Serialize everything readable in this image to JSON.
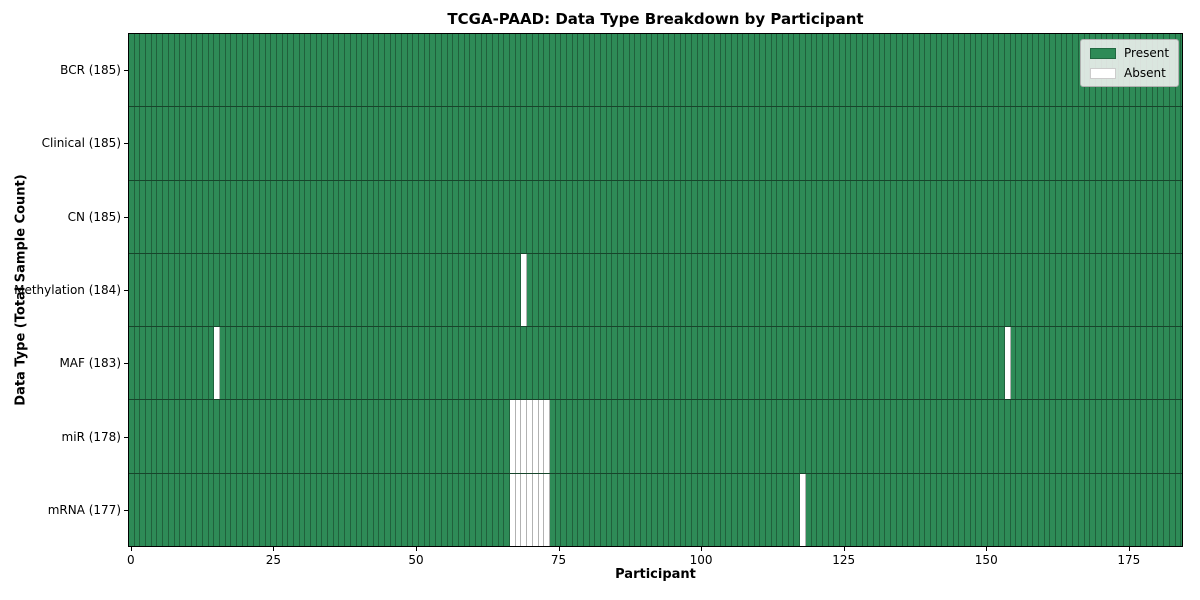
{
  "title": "TCGA-PAAD: Data Type Breakdown by Participant",
  "chart_data": {
    "type": "heatmap",
    "title": "TCGA-PAAD: Data Type Breakdown by Participant",
    "xlabel": "Participant",
    "ylabel": "Data Type (Total Sample Count)",
    "x_ticks": [
      0,
      25,
      50,
      75,
      100,
      125,
      150,
      175
    ],
    "xlim": [
      -0.5,
      184.5
    ],
    "n_participants": 185,
    "grid": false,
    "legend": {
      "position": "upper right",
      "entries": [
        {
          "label": "Present",
          "color": "#2e8b57"
        },
        {
          "label": "Absent",
          "color": "#ffffff"
        }
      ]
    },
    "colors": {
      "present": "#2e8b57",
      "absent": "#ffffff"
    },
    "rows": [
      {
        "data_type": "BCR",
        "total_samples": 185,
        "label": "BCR (185)",
        "absent_participants": []
      },
      {
        "data_type": "Clinical",
        "total_samples": 185,
        "label": "Clinical (185)",
        "absent_participants": []
      },
      {
        "data_type": "CN",
        "total_samples": 185,
        "label": "CN (185)",
        "absent_participants": []
      },
      {
        "data_type": "Methylation",
        "total_samples": 184,
        "label": "Methylation (184)",
        "absent_participants": [
          69
        ]
      },
      {
        "data_type": "MAF",
        "total_samples": 183,
        "label": "MAF (183)",
        "absent_participants": [
          15,
          154
        ]
      },
      {
        "data_type": "miR",
        "total_samples": 178,
        "label": "miR (178)",
        "absent_participants": [
          67,
          68,
          69,
          70,
          71,
          72,
          73
        ]
      },
      {
        "data_type": "mRNA",
        "total_samples": 177,
        "label": "mRNA (177)",
        "absent_participants": [
          67,
          68,
          69,
          70,
          71,
          72,
          73,
          118
        ]
      }
    ]
  }
}
